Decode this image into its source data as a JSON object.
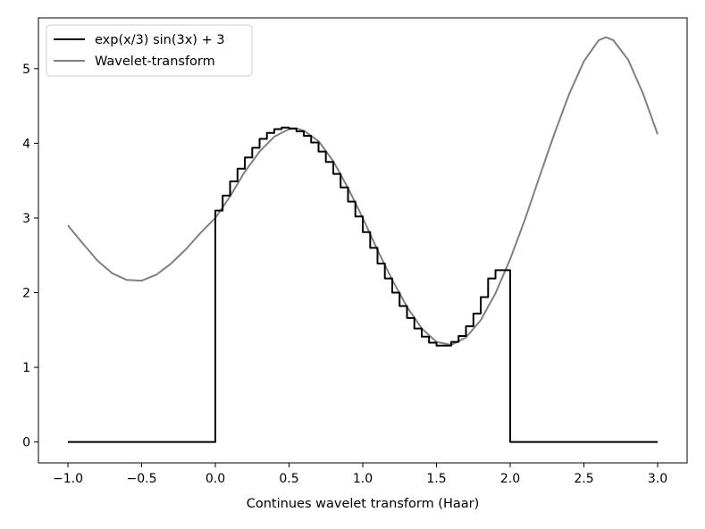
{
  "chart_data": {
    "type": "line",
    "title": "",
    "xlabel": "Continues wavelet transform (Haar)",
    "ylabel": "",
    "xlim": [
      -1.2,
      3.2
    ],
    "ylim": [
      -0.28,
      5.68
    ],
    "xticks": [
      -1.0,
      -0.5,
      0.0,
      0.5,
      1.0,
      1.5,
      2.0,
      2.5,
      3.0
    ],
    "xtick_labels": [
      "−1.0",
      "−0.5",
      "0.0",
      "0.5",
      "1.0",
      "1.5",
      "2.0",
      "2.5",
      "3.0"
    ],
    "yticks": [
      0,
      1,
      2,
      3,
      4,
      5
    ],
    "ytick_labels": [
      "0",
      "1",
      "2",
      "3",
      "4",
      "5"
    ],
    "grid": false,
    "legend_position": "top-left",
    "series": [
      {
        "name": "exp(x/3) sin(3x) + 3",
        "color": "#000000",
        "style": "step",
        "x": [
          -1.0,
          0.0,
          0.0,
          0.05,
          0.1,
          0.15,
          0.2,
          0.25,
          0.3,
          0.35,
          0.4,
          0.45,
          0.5,
          0.55,
          0.6,
          0.65,
          0.7,
          0.75,
          0.8,
          0.85,
          0.9,
          0.95,
          1.0,
          1.05,
          1.1,
          1.15,
          1.2,
          1.25,
          1.3,
          1.35,
          1.4,
          1.45,
          1.5,
          1.55,
          1.6,
          1.65,
          1.7,
          1.75,
          1.8,
          1.85,
          1.9,
          1.95,
          2.0,
          2.0,
          3.0
        ],
        "y": [
          0,
          0,
          3.1,
          3.3,
          3.49,
          3.66,
          3.81,
          3.94,
          4.06,
          4.14,
          4.19,
          4.21,
          4.2,
          4.16,
          4.1,
          4.01,
          3.89,
          3.75,
          3.59,
          3.41,
          3.22,
          3.02,
          2.81,
          2.6,
          2.39,
          2.19,
          2.0,
          1.82,
          1.66,
          1.52,
          1.41,
          1.33,
          1.29,
          1.29,
          1.34,
          1.42,
          1.55,
          1.72,
          1.94,
          2.19,
          2.3,
          2.3,
          2.3,
          0,
          0
        ]
      },
      {
        "name": "Wavelet-transform",
        "color": "#808080",
        "style": "line",
        "x": [
          -1.0,
          -0.9,
          -0.8,
          -0.7,
          -0.6,
          -0.5,
          -0.4,
          -0.3,
          -0.2,
          -0.1,
          0.0,
          0.1,
          0.2,
          0.3,
          0.4,
          0.5,
          0.55,
          0.6,
          0.7,
          0.8,
          0.9,
          1.0,
          1.1,
          1.2,
          1.3,
          1.4,
          1.5,
          1.6,
          1.7,
          1.8,
          1.9,
          2.0,
          2.1,
          2.2,
          2.3,
          2.4,
          2.5,
          2.6,
          2.65,
          2.7,
          2.8,
          2.9,
          3.0
        ],
        "y": [
          2.9,
          2.66,
          2.43,
          2.26,
          2.17,
          2.16,
          2.24,
          2.39,
          2.58,
          2.8,
          3.0,
          3.29,
          3.62,
          3.89,
          4.09,
          4.19,
          4.2,
          4.17,
          4.03,
          3.76,
          3.4,
          3.0,
          2.57,
          2.17,
          1.81,
          1.52,
          1.34,
          1.3,
          1.4,
          1.63,
          1.99,
          2.45,
          2.98,
          3.56,
          4.13,
          4.66,
          5.1,
          5.38,
          5.42,
          5.38,
          5.12,
          4.67,
          4.12
        ]
      }
    ]
  }
}
